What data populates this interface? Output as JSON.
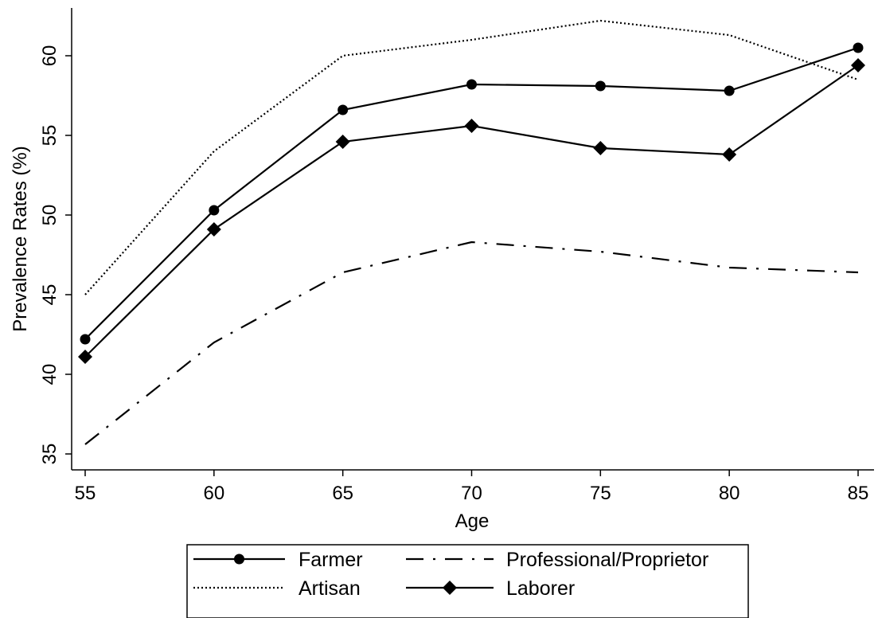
{
  "chart_data": {
    "type": "line",
    "title": "",
    "xlabel": "Age",
    "ylabel": "Prevalence Rates (%)",
    "x": [
      55,
      60,
      65,
      70,
      75,
      80,
      85
    ],
    "xlim": [
      55,
      85
    ],
    "ylim": [
      35,
      60
    ],
    "xticks": [
      "55",
      "60",
      "65",
      "70",
      "75",
      "80",
      "85"
    ],
    "yticks": [
      "35",
      "40",
      "45",
      "50",
      "55",
      "60"
    ],
    "grid": false,
    "legend_position": "bottom",
    "series": [
      {
        "name": "Farmer",
        "values": [
          42.2,
          50.3,
          56.6,
          58.2,
          58.1,
          57.8,
          60.5
        ],
        "style": "solid",
        "marker": "circle",
        "color": "#000000"
      },
      {
        "name": "Professional/Proprietor",
        "values": [
          35.6,
          42.0,
          46.4,
          48.3,
          47.7,
          46.7,
          46.4
        ],
        "style": "longdash-dot",
        "marker": "none",
        "color": "#000000"
      },
      {
        "name": "Artisan",
        "values": [
          45.0,
          54.0,
          60.0,
          61.0,
          62.2,
          61.3,
          58.5
        ],
        "style": "dotted",
        "marker": "none",
        "color": "#000000"
      },
      {
        "name": "Laborer",
        "values": [
          41.1,
          49.1,
          54.6,
          55.6,
          54.2,
          53.8,
          59.4
        ],
        "style": "solid",
        "marker": "diamond",
        "color": "#000000"
      }
    ]
  }
}
